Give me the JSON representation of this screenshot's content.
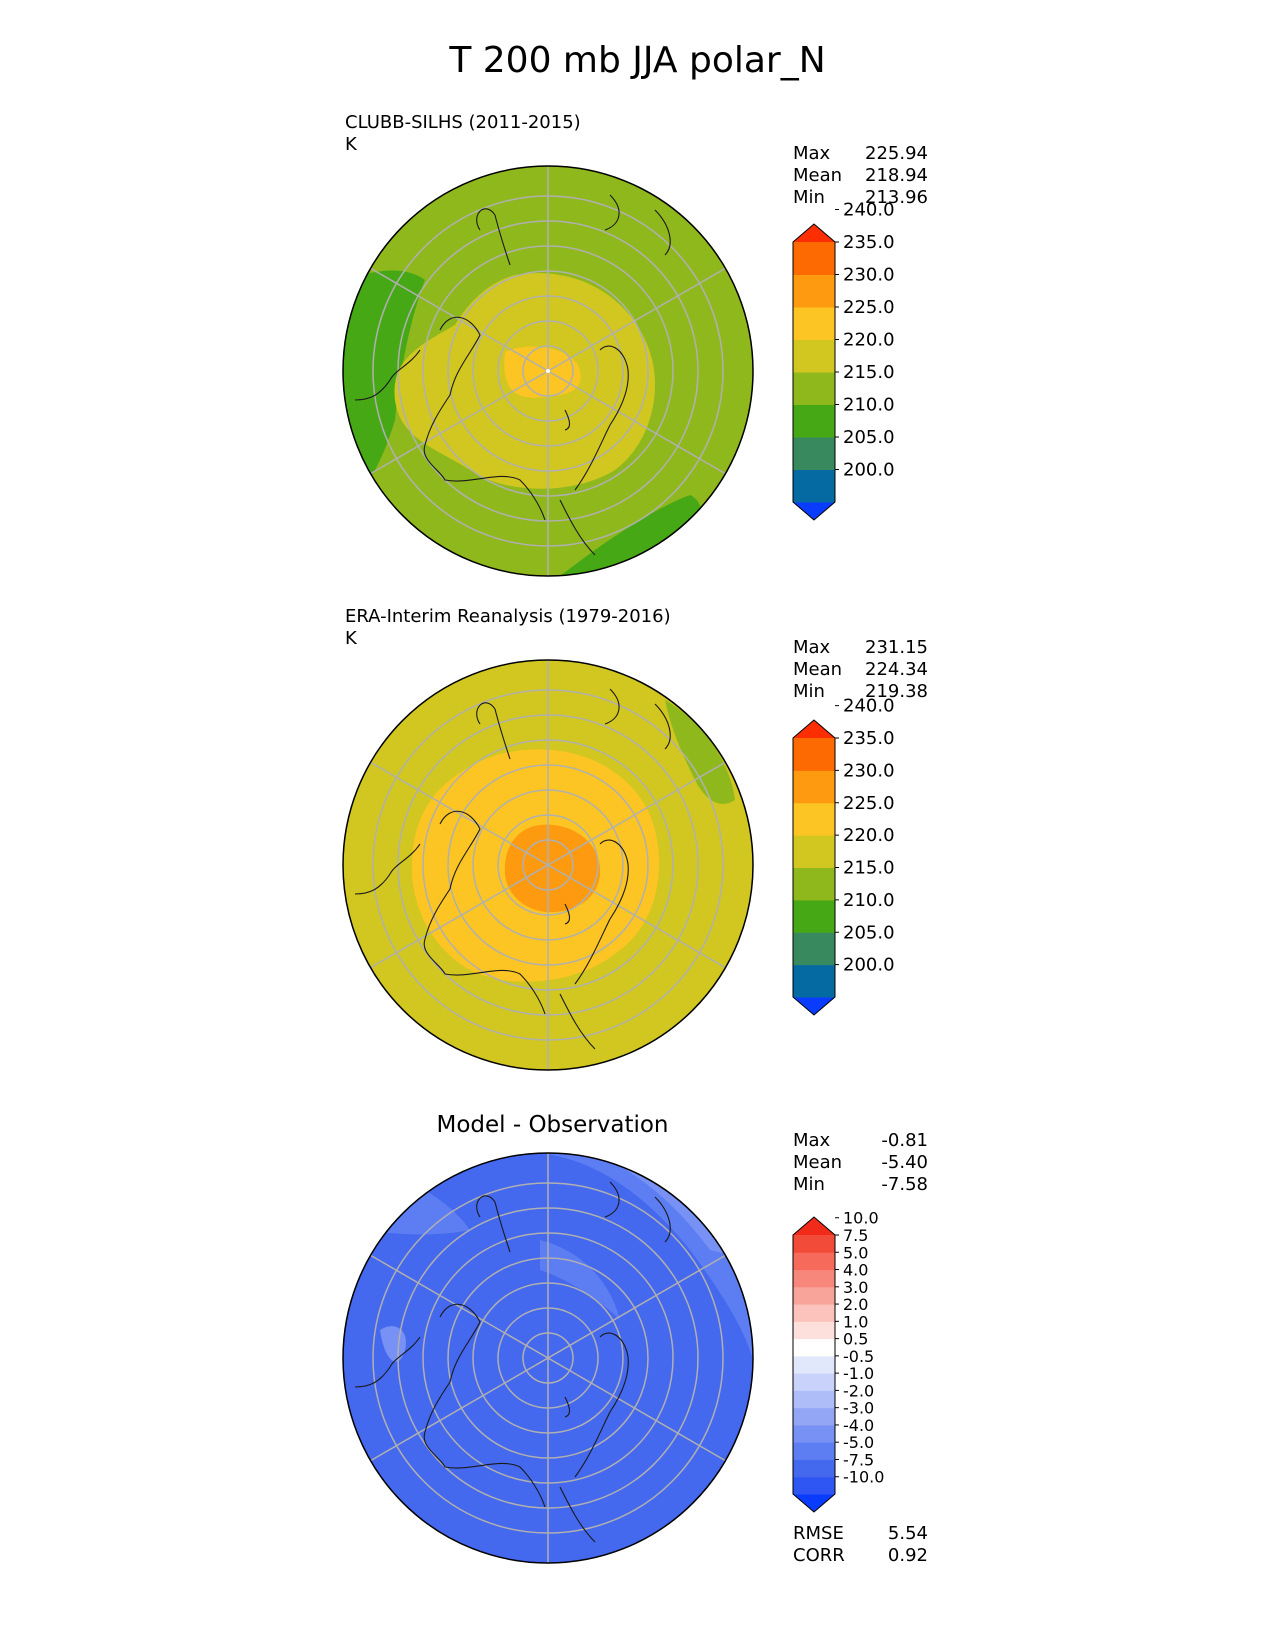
{
  "title": "T 200 mb JJA polar_N",
  "panels": [
    {
      "name": "CLUBB-SILHS (2011-2015)",
      "units": "K",
      "stats": [
        {
          "label": "Max",
          "value": "225.94"
        },
        {
          "label": "Mean",
          "value": "218.94"
        },
        {
          "label": "Min",
          "value": "213.96"
        }
      ]
    },
    {
      "name": "ERA-Interim Reanalysis (1979-2016)",
      "units": "K",
      "stats": [
        {
          "label": "Max",
          "value": "231.15"
        },
        {
          "label": "Mean",
          "value": "224.34"
        },
        {
          "label": "Min",
          "value": "219.38"
        }
      ]
    },
    {
      "name": "Model - Observation",
      "stats": [
        {
          "label": "Max",
          "value": "-0.81"
        },
        {
          "label": "Mean",
          "value": "-5.40"
        },
        {
          "label": "Min",
          "value": "-7.58"
        }
      ],
      "metrics": [
        {
          "label": "RMSE",
          "value": "5.54"
        },
        {
          "label": "CORR",
          "value": "0.92"
        }
      ]
    }
  ],
  "colorbars": {
    "temperature": {
      "ticks": [
        "200.0",
        "205.0",
        "210.0",
        "215.0",
        "220.0",
        "225.0",
        "230.0",
        "235.0",
        "240.0"
      ],
      "colors": [
        "#0a3cff",
        "#066aa2",
        "#388a5e",
        "#47a816",
        "#8fb81d",
        "#d1c720",
        "#fcc523",
        "#fd9a0f",
        "#fd6a02",
        "#fe2e03"
      ]
    },
    "difference": {
      "ticks": [
        "-10.0",
        "-7.5",
        "-5.0",
        "-4.0",
        "-3.0",
        "-2.0",
        "-1.0",
        "-0.5",
        "0.5",
        "1.0",
        "2.0",
        "3.0",
        "4.0",
        "5.0",
        "7.5",
        "10.0"
      ],
      "colors": [
        "#0a3cff",
        "#2f55f2",
        "#4468ee",
        "#5d7ef2",
        "#7891f4",
        "#93a6f6",
        "#aebcf8",
        "#c8d2fa",
        "#e2e8fc",
        "#ffffff",
        "#fde0dc",
        "#fbc3bb",
        "#f9a49a",
        "#f7877a",
        "#f56a5a",
        "#f34b3a",
        "#f12b1a"
      ]
    }
  },
  "chart_data": {
    "type": "heatmap",
    "projection": "north polar stereographic",
    "fields": [
      {
        "panel": "CLUBB-SILHS (2011-2015)",
        "max": 225.94,
        "mean": 218.94,
        "min": 213.96
      },
      {
        "panel": "ERA-Interim Reanalysis (1979-2016)",
        "max": 231.15,
        "mean": 224.34,
        "min": 219.38
      },
      {
        "panel": "Model - Observation",
        "max": -0.81,
        "mean": -5.4,
        "min": -7.58,
        "rmse": 5.54,
        "corr": 0.92
      }
    ]
  }
}
